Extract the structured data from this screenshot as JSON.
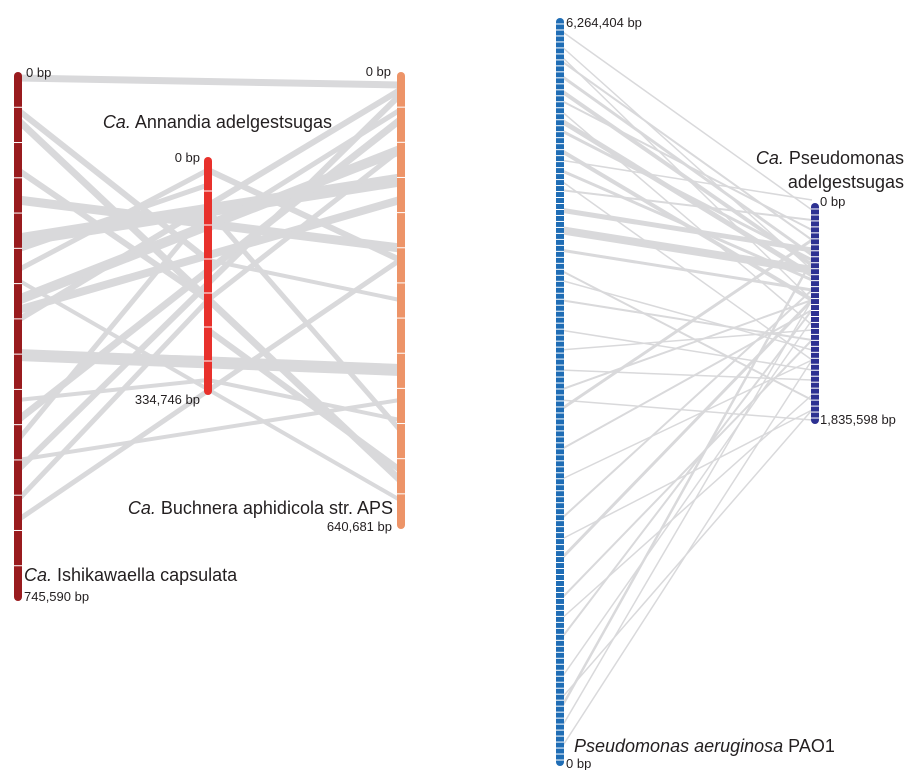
{
  "colors": {
    "ishikawaella": "#991b1e",
    "annandia": "#e8312c",
    "buchnera": "#ed9468",
    "p_aeruginosa": "#1f6db5",
    "p_adelgestsugas": "#2d3192",
    "link": "#d9d9db",
    "text": "#231f20"
  },
  "left_panel": {
    "ishikawaella": {
      "name_prefix": "Ca.",
      "name_rest": " Ishikawaella capsulata",
      "start_label": "0 bp",
      "end_label": "745,590 bp"
    },
    "annandia": {
      "name_prefix": "Ca.",
      "name_rest": " Annandia adelgestsugas",
      "start_label": "0 bp",
      "end_label": "334,746 bp"
    },
    "buchnera": {
      "name_prefix": "Ca.",
      "name_rest": " Buchnera aphidicola str. APS",
      "start_label": "0 bp",
      "end_label": "640,681 bp"
    }
  },
  "right_panel": {
    "p_aeruginosa": {
      "name_italic": "Pseudomonas aeruginosa",
      "name_rest": " PAO1",
      "start_label": "0 bp",
      "end_label": "6,264,404 bp"
    },
    "p_adelgestsugas": {
      "name_prefix": "Ca.",
      "name_line1": " Pseudomonas",
      "name_line2": "adelgestsugas",
      "start_label": "0 bp",
      "end_label": "1,835,598 bp"
    }
  }
}
